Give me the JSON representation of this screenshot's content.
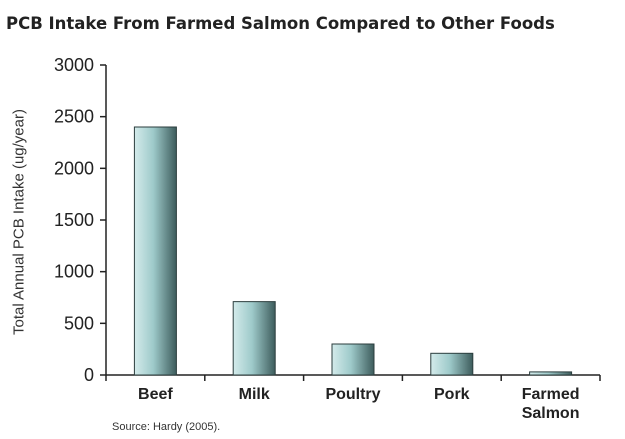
{
  "chart_data": {
    "type": "bar",
    "title": "PCB Intake From Farmed Salmon Compared to Other Foods",
    "ylabel": "Total Annual PCB Intake (ug/year)",
    "xlabel": "",
    "categories": [
      [
        "Beef"
      ],
      [
        "Milk"
      ],
      [
        "Poultry"
      ],
      [
        "Pork"
      ],
      [
        "Farmed",
        "Salmon"
      ]
    ],
    "values": [
      2400,
      710,
      300,
      210,
      30
    ],
    "ylim": [
      0,
      3000
    ],
    "yticks": [
      "0",
      "500",
      "1000",
      "1500",
      "2000",
      "2500",
      "3000"
    ],
    "grid": false,
    "source": "Source: Hardy (2005).",
    "colors": {
      "bar_light": "#d4ebeb",
      "bar_mid": "#9ecaca",
      "bar_dark": "#3d5c5c",
      "axis": "#222222"
    }
  }
}
